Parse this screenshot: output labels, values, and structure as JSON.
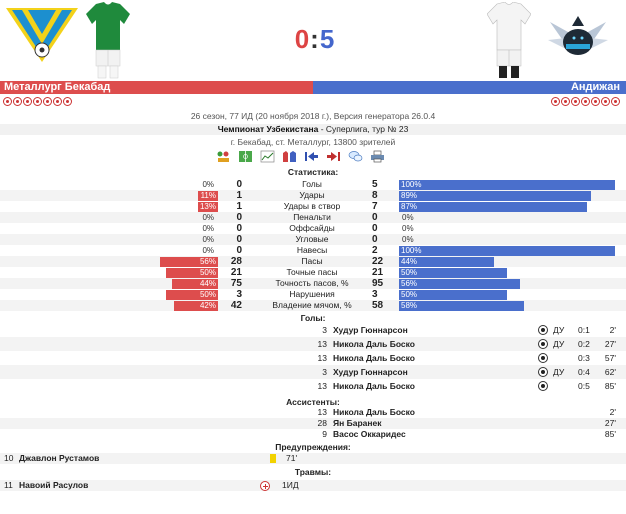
{
  "colors": {
    "home": "#dd4d4d",
    "away": "#4a6fcc",
    "yellow_card": "#f2d200"
  },
  "match": {
    "home_team": "Металлург Бекабад",
    "away_team": "Андижан",
    "home_goals": "0",
    "away_goals": "5",
    "separator": ":",
    "home_stars": 7,
    "away_stars": 7
  },
  "info": {
    "line1": "26 сезон, 77 ИД (20 ноября 2018 г.), Версия генератора 26.0.4",
    "tournament": "Чемпионат Узбекистана",
    "round": " - Суперлига, тур № 23",
    "venue": "г. Бекабад, ст. Металлург, 13800 зрителей"
  },
  "tools": [
    "lineup-icon",
    "formation-icon",
    "chart-icon",
    "shirts-icon",
    "back-icon",
    "forward-icon",
    "chat-icon",
    "print-icon"
  ],
  "stats_title": "Статистика:",
  "stats": [
    {
      "label": "Голы",
      "home": "0",
      "away": "5",
      "home_pct": "0%",
      "away_pct": "100%",
      "home_frac": 0,
      "away_frac": 1.0
    },
    {
      "label": "Удары",
      "home": "1",
      "away": "8",
      "home_pct": "11%",
      "away_pct": "89%",
      "home_frac": 0.11,
      "away_frac": 0.89
    },
    {
      "label": "Удары в створ",
      "home": "1",
      "away": "7",
      "home_pct": "13%",
      "away_pct": "87%",
      "home_frac": 0.13,
      "away_frac": 0.87
    },
    {
      "label": "Пенальти",
      "home": "0",
      "away": "0",
      "home_pct": "0%",
      "away_pct": "0%",
      "home_frac": 0,
      "away_frac": 0
    },
    {
      "label": "Оффсайды",
      "home": "0",
      "away": "0",
      "home_pct": "0%",
      "away_pct": "0%",
      "home_frac": 0,
      "away_frac": 0
    },
    {
      "label": "Угловые",
      "home": "0",
      "away": "0",
      "home_pct": "0%",
      "away_pct": "0%",
      "home_frac": 0,
      "away_frac": 0
    },
    {
      "label": "Навесы",
      "home": "0",
      "away": "2",
      "home_pct": "0%",
      "away_pct": "100%",
      "home_frac": 0,
      "away_frac": 1.0
    },
    {
      "label": "Пасы",
      "home": "28",
      "away": "22",
      "home_pct": "56%",
      "away_pct": "44%",
      "home_frac": 0.56,
      "away_frac": 0.44
    },
    {
      "label": "Точные пасы",
      "home": "21",
      "away": "21",
      "home_pct": "50%",
      "away_pct": "50%",
      "home_frac": 0.5,
      "away_frac": 0.5
    },
    {
      "label": "Точность пасов, %",
      "home": "75",
      "away": "95",
      "home_pct": "44%",
      "away_pct": "56%",
      "home_frac": 0.44,
      "away_frac": 0.56
    },
    {
      "label": "Нарушения",
      "home": "3",
      "away": "3",
      "home_pct": "50%",
      "away_pct": "50%",
      "home_frac": 0.5,
      "away_frac": 0.5
    },
    {
      "label": "Владение мячом, %",
      "home": "42",
      "away": "58",
      "home_pct": "42%",
      "away_pct": "58%",
      "home_frac": 0.42,
      "away_frac": 0.58
    }
  ],
  "goals_title": "Голы:",
  "goals": [
    {
      "num": "3",
      "name": "Худур Гюннарсон",
      "type": "ДУ",
      "score": "0:1",
      "minute": "2'"
    },
    {
      "num": "13",
      "name": "Никола Даль Боско",
      "type": "ДУ",
      "score": "0:2",
      "minute": "27'"
    },
    {
      "num": "13",
      "name": "Никола Даль Боско",
      "type": "",
      "score": "0:3",
      "minute": "57'"
    },
    {
      "num": "3",
      "name": "Худур Гюннарсон",
      "type": "ДУ",
      "score": "0:4",
      "minute": "62'"
    },
    {
      "num": "13",
      "name": "Никола Даль Боско",
      "type": "",
      "score": "0:5",
      "minute": "85'"
    }
  ],
  "assists_title": "Ассистенты:",
  "assists": [
    {
      "num": "13",
      "name": "Никола Даль Боско",
      "minute": "2'"
    },
    {
      "num": "28",
      "name": "Ян Баранек",
      "minute": "27'"
    },
    {
      "num": "9",
      "name": "Васос Оккаридес",
      "minute": "85'"
    }
  ],
  "cards_title": "Предупреждения:",
  "cards": [
    {
      "num": "10",
      "name": "Джавлон Рустамов",
      "minute": "71'"
    }
  ],
  "injuries_title": "Травмы:",
  "injuries": [
    {
      "num": "11",
      "name": "Навоий Расулов",
      "value": "1ИД"
    }
  ]
}
